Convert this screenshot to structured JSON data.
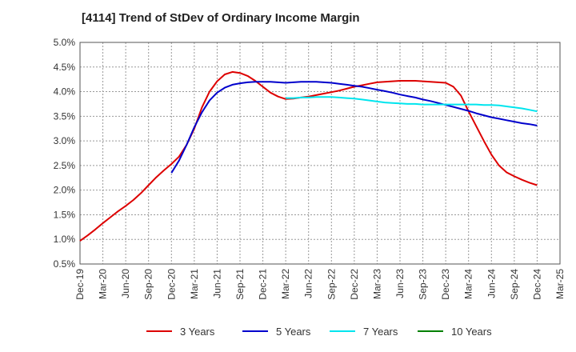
{
  "chart_data": {
    "type": "line",
    "title": "[4114]  Trend of StDev of Ordinary Income Margin",
    "xlabel": "",
    "ylabel": "",
    "x_ticks": [
      "Dec-19",
      "Mar-20",
      "Jun-20",
      "Sep-20",
      "Dec-20",
      "Mar-21",
      "Jun-21",
      "Sep-21",
      "Dec-21",
      "Mar-22",
      "Jun-22",
      "Sep-22",
      "Dec-22",
      "Mar-23",
      "Jun-23",
      "Sep-23",
      "Dec-23",
      "Mar-24",
      "Jun-24",
      "Sep-24",
      "Dec-24",
      "Mar-25"
    ],
    "y_ticks": [
      "0.5%",
      "1.0%",
      "1.5%",
      "2.0%",
      "2.5%",
      "3.0%",
      "3.5%",
      "4.0%",
      "4.5%",
      "5.0%"
    ],
    "ylim": [
      0.5,
      5.0
    ],
    "grid": true,
    "legend_position": "bottom",
    "series": [
      {
        "name": "3 Years",
        "color": "#dd0000",
        "x": [
          "Dec-19",
          "Jan-20",
          "Feb-20",
          "Mar-20",
          "Apr-20",
          "May-20",
          "Jun-20",
          "Jul-20",
          "Aug-20",
          "Sep-20",
          "Oct-20",
          "Nov-20",
          "Dec-20",
          "Jan-21",
          "Feb-21",
          "Mar-21",
          "Apr-21",
          "May-21",
          "Jun-21",
          "Jul-21",
          "Aug-21",
          "Sep-21",
          "Oct-21",
          "Nov-21",
          "Dec-21",
          "Jan-22",
          "Feb-22",
          "Mar-22",
          "Apr-22",
          "May-22",
          "Jun-22",
          "Jul-22",
          "Aug-22",
          "Sep-22",
          "Oct-22",
          "Nov-22",
          "Dec-22",
          "Jan-23",
          "Feb-23",
          "Mar-23",
          "Apr-23",
          "May-23",
          "Jun-23",
          "Jul-23",
          "Aug-23",
          "Sep-23",
          "Oct-23",
          "Nov-23",
          "Dec-23",
          "Jan-24",
          "Feb-24",
          "Mar-24",
          "Apr-24",
          "May-24",
          "Jun-24",
          "Jul-24",
          "Aug-24",
          "Sep-24",
          "Oct-24",
          "Nov-24",
          "Dec-24"
        ],
        "values": [
          0.97,
          1.08,
          1.2,
          1.33,
          1.45,
          1.57,
          1.68,
          1.8,
          1.94,
          2.1,
          2.26,
          2.4,
          2.53,
          2.68,
          2.92,
          3.25,
          3.68,
          4.0,
          4.21,
          4.35,
          4.4,
          4.38,
          4.32,
          4.22,
          4.1,
          3.98,
          3.9,
          3.85,
          3.86,
          3.88,
          3.9,
          3.93,
          3.96,
          3.99,
          4.02,
          4.06,
          4.1,
          4.13,
          4.16,
          4.19,
          4.2,
          4.21,
          4.22,
          4.22,
          4.22,
          4.21,
          4.2,
          4.19,
          4.18,
          4.1,
          3.92,
          3.6,
          3.3,
          3.0,
          2.72,
          2.5,
          2.36,
          2.28,
          2.21,
          2.15,
          2.1
        ]
      },
      {
        "name": "5 Years",
        "color": "#0000cc",
        "x": [
          "Dec-20",
          "Jan-21",
          "Feb-21",
          "Mar-21",
          "Apr-21",
          "May-21",
          "Jun-21",
          "Jul-21",
          "Aug-21",
          "Sep-21",
          "Oct-21",
          "Nov-21",
          "Dec-21",
          "Jan-22",
          "Feb-22",
          "Mar-22",
          "Apr-22",
          "May-22",
          "Jun-22",
          "Jul-22",
          "Aug-22",
          "Sep-22",
          "Oct-22",
          "Nov-22",
          "Dec-22",
          "Jan-23",
          "Feb-23",
          "Mar-23",
          "Apr-23",
          "May-23",
          "Jun-23",
          "Jul-23",
          "Aug-23",
          "Sep-23",
          "Oct-23",
          "Nov-23",
          "Dec-23",
          "Jan-24",
          "Feb-24",
          "Mar-24",
          "Apr-24",
          "May-24",
          "Jun-24",
          "Jul-24",
          "Aug-24",
          "Sep-24",
          "Oct-24",
          "Nov-24",
          "Dec-24"
        ],
        "values": [
          2.35,
          2.6,
          2.92,
          3.28,
          3.58,
          3.82,
          3.98,
          4.08,
          4.14,
          4.17,
          4.19,
          4.2,
          4.2,
          4.2,
          4.19,
          4.18,
          4.19,
          4.2,
          4.2,
          4.2,
          4.19,
          4.18,
          4.16,
          4.14,
          4.12,
          4.1,
          4.07,
          4.04,
          4.01,
          3.98,
          3.94,
          3.91,
          3.88,
          3.84,
          3.81,
          3.77,
          3.73,
          3.69,
          3.65,
          3.61,
          3.56,
          3.52,
          3.48,
          3.45,
          3.42,
          3.39,
          3.36,
          3.34,
          3.31
        ]
      },
      {
        "name": "7 Years",
        "color": "#00e5ee",
        "x": [
          "Mar-22",
          "Apr-22",
          "May-22",
          "Jun-22",
          "Jul-22",
          "Aug-22",
          "Sep-22",
          "Oct-22",
          "Nov-22",
          "Dec-22",
          "Jan-23",
          "Feb-23",
          "Mar-23",
          "Apr-23",
          "May-23",
          "Jun-23",
          "Jul-23",
          "Aug-23",
          "Sep-23",
          "Oct-23",
          "Nov-23",
          "Dec-23",
          "Jan-24",
          "Feb-24",
          "Mar-24",
          "Apr-24",
          "May-24",
          "Jun-24",
          "Jul-24",
          "Aug-24",
          "Sep-24",
          "Oct-24",
          "Nov-24",
          "Dec-24"
        ],
        "values": [
          3.87,
          3.87,
          3.88,
          3.88,
          3.89,
          3.89,
          3.89,
          3.88,
          3.87,
          3.86,
          3.84,
          3.82,
          3.8,
          3.78,
          3.77,
          3.76,
          3.75,
          3.75,
          3.74,
          3.74,
          3.74,
          3.74,
          3.74,
          3.74,
          3.74,
          3.74,
          3.73,
          3.73,
          3.72,
          3.7,
          3.68,
          3.66,
          3.63,
          3.6
        ]
      },
      {
        "name": "10 Years",
        "color": "#008000",
        "x": [],
        "values": []
      }
    ]
  }
}
